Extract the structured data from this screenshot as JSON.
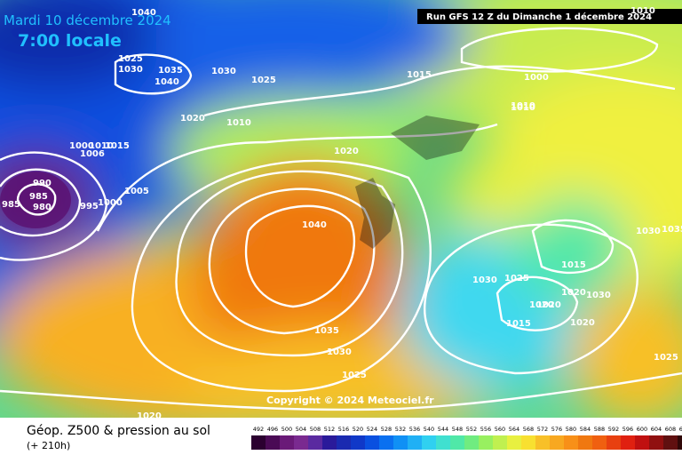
{
  "header": {
    "date": "Mardi 10 décembre 2024",
    "time": "7:00 locale",
    "run": "Run GFS 12 Z du Dimanche 1 décembre 2024"
  },
  "map": {
    "copyright": "Copyright © 2024 Meteociel.fr",
    "isobar_labels": [
      "1040",
      "1025",
      "1030",
      "1035",
      "1040",
      "1030",
      "1025",
      "1015",
      "1000",
      "1010",
      "1020",
      "1010",
      "1000",
      "1010",
      "1015",
      "1006",
      "990",
      "985",
      "980",
      "985",
      "995",
      "1000",
      "1005",
      "1020",
      "1040",
      "1035",
      "1030",
      "1025",
      "1020",
      "1030",
      "1025",
      "1010",
      "1015",
      "1020",
      "1020",
      "1020",
      "1015",
      "1020",
      "1030",
      "1035",
      "1030",
      "1025",
      "1010"
    ]
  },
  "footer": {
    "title": "Géop. Z500 & pression au sol",
    "lead": "(+ 210h)",
    "scale": [
      492,
      496,
      500,
      504,
      508,
      512,
      516,
      520,
      524,
      528,
      532,
      536,
      540,
      544,
      548,
      552,
      556,
      560,
      564,
      568,
      572,
      576,
      580,
      584,
      588,
      592,
      596,
      600,
      604,
      608,
      612
    ],
    "scale_colors": [
      "#2b0030",
      "#4a0a55",
      "#6a1a78",
      "#7a2a90",
      "#5a2aa0",
      "#2a1a9a",
      "#1a2ab0",
      "#1038c8",
      "#0a50e0",
      "#0a70f0",
      "#1090f5",
      "#20b0f5",
      "#30d0f0",
      "#40e0d0",
      "#50e8a8",
      "#70ec80",
      "#98f060",
      "#c0f050",
      "#e8f040",
      "#f8e030",
      "#f8c028",
      "#f8a820",
      "#f89018",
      "#f07810",
      "#f06010",
      "#e84010",
      "#e02010",
      "#c01010",
      "#901010",
      "#601010",
      "#300808"
    ]
  }
}
